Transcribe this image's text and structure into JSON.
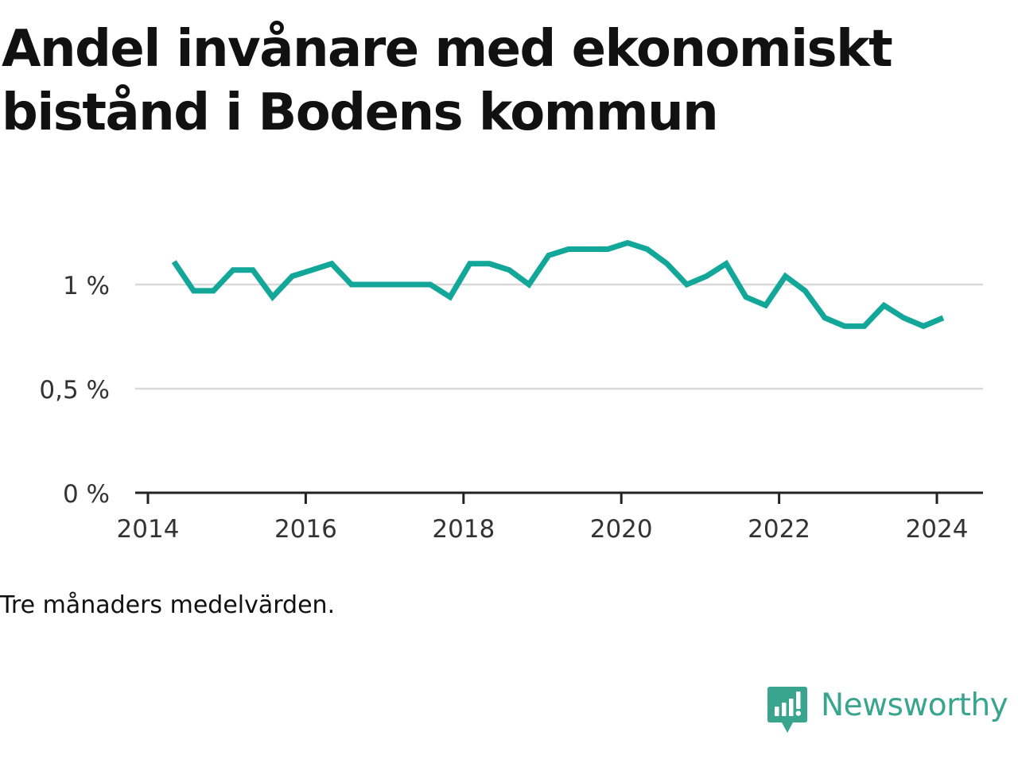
{
  "title": "Andel invånare med ekonomiskt bistånd i Bodens kommun",
  "footnote": "Tre månaders medelvärden.",
  "brand": {
    "name": "Newsworthy",
    "color": "#3aa58f"
  },
  "colors": {
    "line": "#13a79a",
    "grid": "#d9d9d9",
    "axis": "#222222"
  },
  "chart_data": {
    "type": "line",
    "xlabel": "",
    "ylabel": "",
    "xlim": [
      2014,
      2024.5
    ],
    "ylim": [
      0,
      1.3
    ],
    "x_ticks": [
      2014,
      2016,
      2018,
      2020,
      2022,
      2024
    ],
    "x_tick_labels": [
      "2014",
      "2016",
      "2018",
      "2020",
      "2022",
      "2024"
    ],
    "y_ticks": [
      0,
      0.5,
      1
    ],
    "y_tick_labels": [
      "0 %",
      "0,5 %",
      "1 %"
    ],
    "grid": "horizontal",
    "legend": "none",
    "series": [
      {
        "x": [
          2014.33,
          2014.58,
          2014.83,
          2015.08,
          2015.33,
          2015.58,
          2015.83,
          2016.08,
          2016.33,
          2016.58,
          2016.83,
          2017.08,
          2017.33,
          2017.58,
          2017.83,
          2018.08,
          2018.33,
          2018.58,
          2018.83,
          2019.08,
          2019.33,
          2019.58,
          2019.83,
          2020.08,
          2020.33,
          2020.58,
          2020.83,
          2021.08,
          2021.33,
          2021.58,
          2021.83,
          2022.08,
          2022.33,
          2022.58,
          2022.83,
          2023.08,
          2023.33,
          2023.58,
          2023.83,
          2024.08
        ],
        "y": [
          1.11,
          0.97,
          0.97,
          1.07,
          1.07,
          0.94,
          1.04,
          1.07,
          1.1,
          1.0,
          1.0,
          1.0,
          1.0,
          1.0,
          0.94,
          1.1,
          1.1,
          1.07,
          1.0,
          1.14,
          1.17,
          1.17,
          1.17,
          1.2,
          1.17,
          1.1,
          1.0,
          1.04,
          1.1,
          0.94,
          0.9,
          1.04,
          0.97,
          0.84,
          0.8,
          0.8,
          0.9,
          0.84,
          0.8,
          0.84
        ]
      }
    ]
  }
}
